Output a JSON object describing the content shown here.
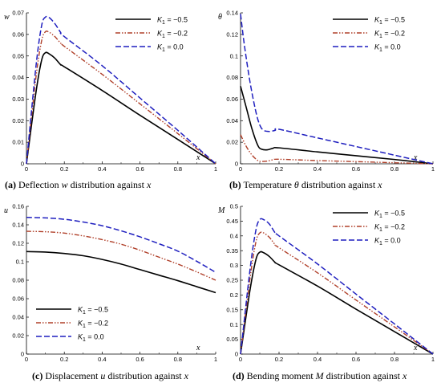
{
  "colors": {
    "black": "#000000",
    "red": "#b0402a",
    "blue": "#1f1fbf"
  },
  "legend_labels": [
    "K1 = −0.5",
    "K1 = −0.2",
    "K1 = 0.0"
  ],
  "legend_parts": [
    {
      "sym": "K",
      "sub": "1",
      "rest": " = −0.5"
    },
    {
      "sym": "K",
      "sub": "1",
      "rest": " = −0.2"
    },
    {
      "sym": "K",
      "sub": "1",
      "rest": " = 0.0"
    }
  ],
  "chart_data": [
    {
      "id": "a",
      "type": "line",
      "ylabel": "w",
      "xlabel": "x",
      "xlim": [
        0,
        1
      ],
      "ylim": [
        0,
        0.07
      ],
      "xticks": [
        "0",
        "0.2",
        "0.4",
        "0.6",
        "0.8",
        "1"
      ],
      "yticks": [
        "0",
        "0.01",
        "0.02",
        "0.03",
        "0.04",
        "0.05",
        "0.06",
        "0.07"
      ],
      "legend_position": "top-right",
      "caption": {
        "label": "(a)",
        "text": "Deflection",
        "sym": "w",
        "tail": "distribution against",
        "sym2": "x"
      },
      "series": [
        {
          "name": "K1 = −0.5",
          "x": [
            0,
            0.05,
            0.08,
            0.1,
            0.12,
            0.15,
            0.18,
            0.2,
            0.4,
            0.6,
            0.8,
            1.0
          ],
          "y": [
            0,
            0.033,
            0.048,
            0.0515,
            0.051,
            0.049,
            0.046,
            0.045,
            0.034,
            0.0225,
            0.0113,
            0
          ]
        },
        {
          "name": "K1 = −0.2",
          "x": [
            0,
            0.05,
            0.08,
            0.1,
            0.12,
            0.15,
            0.18,
            0.2,
            0.4,
            0.6,
            0.8,
            1.0
          ],
          "y": [
            0,
            0.04,
            0.057,
            0.0612,
            0.061,
            0.059,
            0.056,
            0.0545,
            0.0415,
            0.0278,
            0.014,
            0
          ]
        },
        {
          "name": "K1 = 0.0",
          "x": [
            0,
            0.05,
            0.08,
            0.1,
            0.12,
            0.15,
            0.18,
            0.2,
            0.4,
            0.6,
            0.8,
            1.0
          ],
          "y": [
            0,
            0.045,
            0.064,
            0.068,
            0.0678,
            0.065,
            0.061,
            0.059,
            0.0455,
            0.0305,
            0.0155,
            0
          ]
        }
      ]
    },
    {
      "id": "b",
      "type": "line",
      "ylabel": "θ",
      "xlabel": "x",
      "xlim": [
        0,
        1
      ],
      "ylim": [
        0,
        0.14
      ],
      "xticks": [
        "0",
        "0.2",
        "0.4",
        "0.6",
        "0.8",
        "1"
      ],
      "yticks": [
        "0",
        "0.02",
        "0.04",
        "0.06",
        "0.08",
        "0.1",
        "0.12",
        "0.14"
      ],
      "legend_position": "top-right",
      "caption": {
        "label": "(b)",
        "text": "Temperature",
        "sym": "θ",
        "tail": "distribution against",
        "sym2": "x"
      },
      "series": [
        {
          "name": "K1 = −0.5",
          "x": [
            0,
            0.03,
            0.06,
            0.09,
            0.11,
            0.14,
            0.17,
            0.2,
            0.4,
            0.6,
            0.8,
            1.0
          ],
          "y": [
            0.072,
            0.052,
            0.032,
            0.017,
            0.0135,
            0.013,
            0.0145,
            0.0148,
            0.011,
            0.0075,
            0.004,
            0.0
          ]
        },
        {
          "name": "K1 = −0.2",
          "x": [
            0,
            0.03,
            0.06,
            0.09,
            0.11,
            0.14,
            0.17,
            0.2,
            0.4,
            0.6,
            0.8,
            1.0
          ],
          "y": [
            0.027,
            0.016,
            0.008,
            0.003,
            0.0022,
            0.0025,
            0.0038,
            0.0042,
            0.003,
            0.002,
            0.001,
            0.0
          ]
        },
        {
          "name": "K1 = 0.0",
          "x": [
            0,
            0.02,
            0.05,
            0.08,
            0.1,
            0.12,
            0.15,
            0.18,
            0.2,
            0.4,
            0.6,
            0.8,
            1.0
          ],
          "y": [
            0.139,
            0.11,
            0.075,
            0.048,
            0.036,
            0.031,
            0.03,
            0.031,
            0.032,
            0.024,
            0.016,
            0.008,
            0.0
          ]
        }
      ]
    },
    {
      "id": "c",
      "type": "line",
      "ylabel": "u",
      "xlabel": "x",
      "xlim": [
        0,
        1
      ],
      "ylim": [
        0,
        0.16
      ],
      "xticks": [
        "0",
        "0.2",
        "0.4",
        "0.6",
        "0.8",
        "1"
      ],
      "yticks": [
        "0",
        "0.02",
        "0.04",
        "0.06",
        "0.08",
        "0.1",
        "0.12",
        "0.14",
        "0.16"
      ],
      "legend_position": "bottom-left",
      "caption": {
        "label": "(c)",
        "text": "Displacement",
        "sym": "u",
        "tail": "distribution against",
        "sym2": "x"
      },
      "series": [
        {
          "name": "K1 = −0.5",
          "x": [
            0,
            0.1,
            0.2,
            0.3,
            0.4,
            0.5,
            0.6,
            0.7,
            0.8,
            0.9,
            1.0
          ],
          "y": [
            0.111,
            0.1105,
            0.109,
            0.1065,
            0.1025,
            0.0975,
            0.0915,
            0.0855,
            0.0795,
            0.073,
            0.0665
          ]
        },
        {
          "name": "K1 = −0.2",
          "x": [
            0,
            0.1,
            0.2,
            0.3,
            0.4,
            0.5,
            0.6,
            0.7,
            0.8,
            0.9,
            1.0
          ],
          "y": [
            0.133,
            0.1325,
            0.131,
            0.128,
            0.124,
            0.119,
            0.1125,
            0.105,
            0.0975,
            0.089,
            0.08
          ]
        },
        {
          "name": "K1 = 0.0",
          "x": [
            0,
            0.1,
            0.2,
            0.3,
            0.4,
            0.5,
            0.6,
            0.7,
            0.8,
            0.9,
            1.0
          ],
          "y": [
            0.148,
            0.1475,
            0.146,
            0.143,
            0.139,
            0.1335,
            0.127,
            0.1195,
            0.1115,
            0.1005,
            0.0885
          ]
        }
      ]
    },
    {
      "id": "d",
      "type": "line",
      "ylabel": "M",
      "xlabel": "x",
      "xlim": [
        0,
        1
      ],
      "ylim": [
        0,
        0.5
      ],
      "xticks": [
        "0",
        "0.2",
        "0.4",
        "0.6",
        "0.8",
        "1"
      ],
      "yticks": [
        "0",
        "0.05",
        "0.1",
        "0.15",
        "0.2",
        "0.25",
        "0.3",
        "0.35",
        "0.4",
        "0.45",
        "0.5"
      ],
      "legend_position": "top-right",
      "caption": {
        "label": "(d)",
        "text": "Bending moment",
        "sym": "M",
        "tail": "distribution against",
        "sym2": "x"
      },
      "series": [
        {
          "name": "K1 = −0.5",
          "x": [
            0,
            0.05,
            0.08,
            0.1,
            0.12,
            0.15,
            0.18,
            0.2,
            0.4,
            0.6,
            0.8,
            1.0
          ],
          "y": [
            0,
            0.22,
            0.32,
            0.345,
            0.343,
            0.33,
            0.31,
            0.302,
            0.23,
            0.152,
            0.076,
            0
          ]
        },
        {
          "name": "K1 = −0.2",
          "x": [
            0,
            0.05,
            0.08,
            0.1,
            0.12,
            0.15,
            0.18,
            0.2,
            0.4,
            0.6,
            0.8,
            1.0
          ],
          "y": [
            0,
            0.26,
            0.38,
            0.41,
            0.41,
            0.395,
            0.37,
            0.36,
            0.275,
            0.183,
            0.092,
            0
          ]
        },
        {
          "name": "K1 = 0.0",
          "x": [
            0,
            0.05,
            0.08,
            0.1,
            0.12,
            0.15,
            0.18,
            0.2,
            0.4,
            0.6,
            0.8,
            1.0
          ],
          "y": [
            0,
            0.29,
            0.42,
            0.455,
            0.455,
            0.44,
            0.41,
            0.4,
            0.305,
            0.203,
            0.102,
            0
          ]
        }
      ]
    }
  ]
}
